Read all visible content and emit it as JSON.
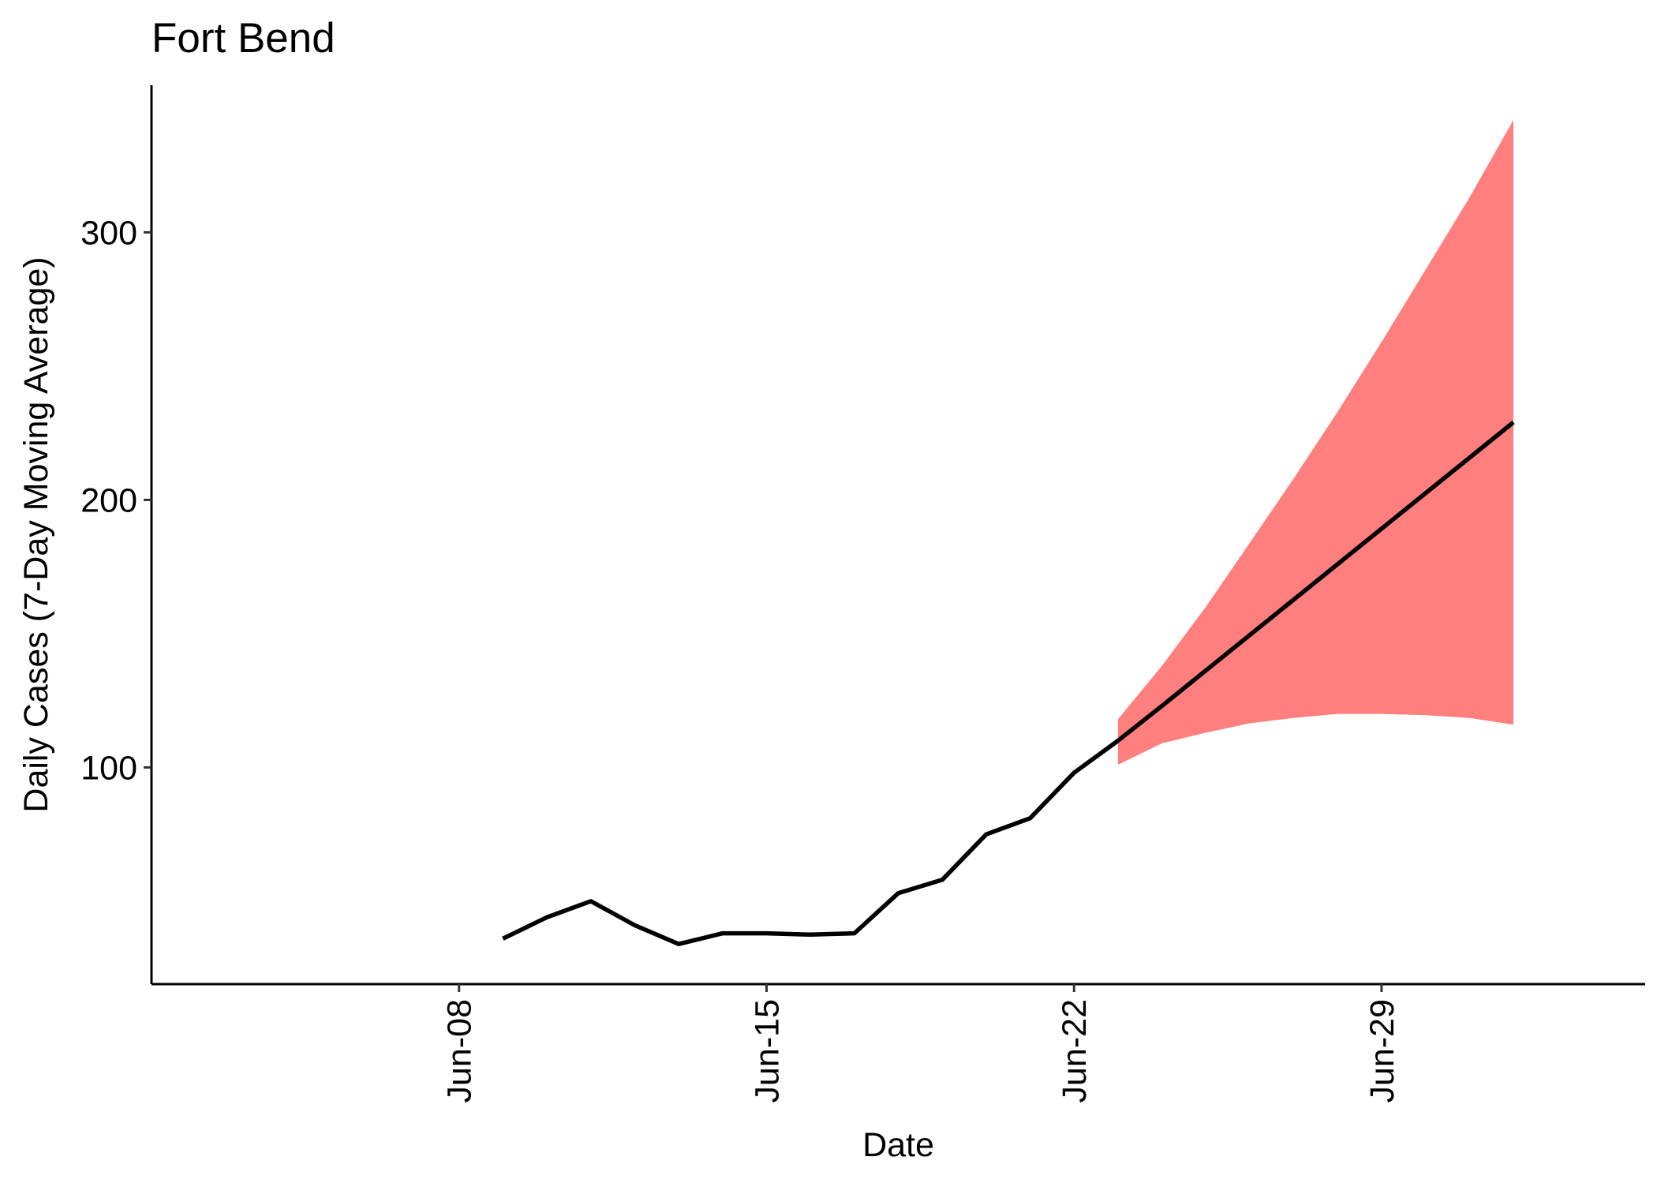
{
  "chart_data": {
    "type": "line",
    "title": "Fort Bend",
    "xlabel": "Date",
    "ylabel": "Daily Cases (7-Day Moving Average)",
    "x_tick_labels": [
      "Jun-08",
      "Jun-15",
      "Jun-22",
      "Jun-29"
    ],
    "y_ticks": [
      100,
      200,
      300
    ],
    "xlim": [
      "2020-06-01",
      "2020-07-05"
    ],
    "ylim": [
      19,
      355
    ],
    "grid": false,
    "legend": "none",
    "series": [
      {
        "kind": "observed",
        "color": "#000000",
        "points": [
          {
            "x": "2020-06-09",
            "y": 36
          },
          {
            "x": "2020-06-10",
            "y": 44
          },
          {
            "x": "2020-06-11",
            "y": 50
          },
          {
            "x": "2020-06-12",
            "y": 41
          },
          {
            "x": "2020-06-13",
            "y": 34
          },
          {
            "x": "2020-06-14",
            "y": 38
          },
          {
            "x": "2020-06-15",
            "y": 38
          },
          {
            "x": "2020-06-16",
            "y": 37.5
          },
          {
            "x": "2020-06-17",
            "y": 38
          },
          {
            "x": "2020-06-18",
            "y": 53
          },
          {
            "x": "2020-06-19",
            "y": 58
          },
          {
            "x": "2020-06-20",
            "y": 75
          },
          {
            "x": "2020-06-21",
            "y": 81
          },
          {
            "x": "2020-06-22",
            "y": 98
          },
          {
            "x": "2020-06-23",
            "y": 110
          }
        ]
      },
      {
        "kind": "forecast",
        "color": "#000000",
        "points": [
          {
            "x": "2020-06-23",
            "y": 110
          },
          {
            "x": "2020-06-24",
            "y": 123
          },
          {
            "x": "2020-07-02",
            "y": 229
          }
        ]
      }
    ],
    "bands": [
      {
        "kind": "forecast-interval",
        "color": "#FF7F7F",
        "points": [
          {
            "x": "2020-06-23",
            "lower": 101,
            "upper": 118
          },
          {
            "x": "2020-06-24",
            "lower": 109,
            "upper": 138
          },
          {
            "x": "2020-06-25",
            "lower": 113,
            "upper": 160
          },
          {
            "x": "2020-06-26",
            "lower": 116.5,
            "upper": 184
          },
          {
            "x": "2020-06-27",
            "lower": 118.5,
            "upper": 208
          },
          {
            "x": "2020-06-28",
            "lower": 120,
            "upper": 233
          },
          {
            "x": "2020-06-29",
            "lower": 120,
            "upper": 259
          },
          {
            "x": "2020-06-30",
            "lower": 119.5,
            "upper": 286
          },
          {
            "x": "2020-07-01",
            "lower": 118.5,
            "upper": 313
          },
          {
            "x": "2020-07-02",
            "lower": 116,
            "upper": 342
          }
        ]
      }
    ]
  }
}
